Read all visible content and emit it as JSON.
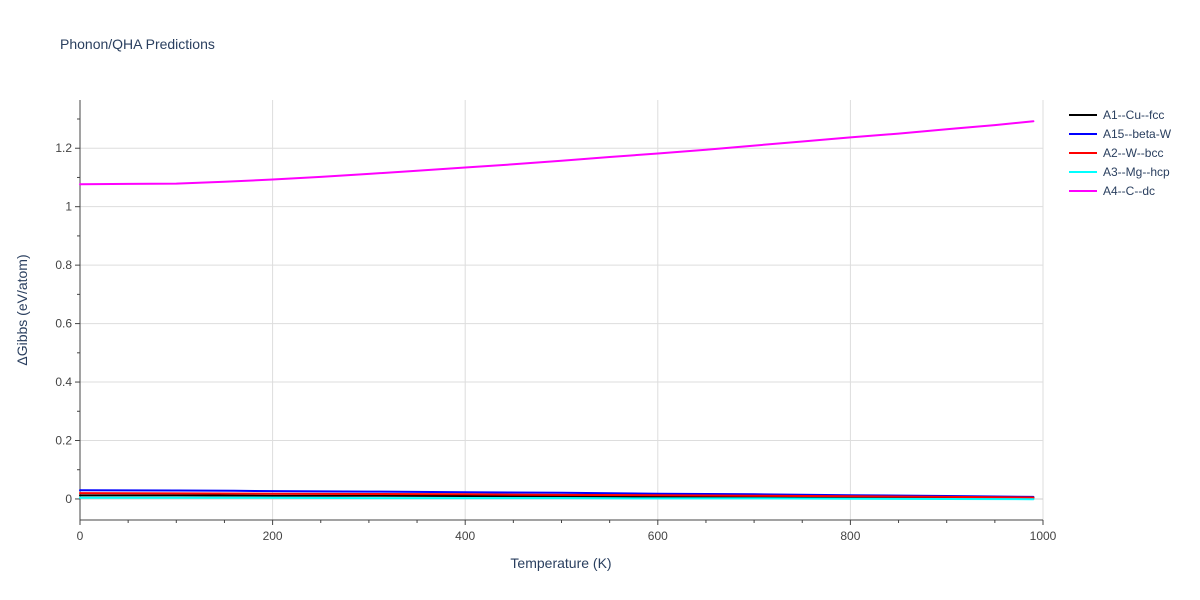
{
  "chart_data": {
    "type": "line",
    "title": "Phonon/QHA Predictions",
    "xlabel": "Temperature (K)",
    "ylabel": "ΔGibbs (eV/atom)",
    "xlim": [
      0,
      1000
    ],
    "ylim": [
      -0.072,
      1.365
    ],
    "xticks": [
      0,
      200,
      400,
      600,
      800,
      1000
    ],
    "xtick_labels": [
      "0",
      "200",
      "400",
      "600",
      "800",
      "1000"
    ],
    "yticks": [
      0,
      0.2,
      0.4,
      0.6,
      0.8,
      1,
      1.2
    ],
    "ytick_labels": [
      "0",
      "0.2",
      "0.4",
      "0.6",
      "0.8",
      "1",
      "1.2"
    ],
    "grid": true,
    "legend_position": "top-right outside",
    "series": [
      {
        "name": "A1--Cu--fcc",
        "color": "#000000",
        "x": [
          0,
          100,
          200,
          300,
          400,
          500,
          600,
          700,
          800,
          900,
          990
        ],
        "y": [
          0.012,
          0.012,
          0.011,
          0.011,
          0.01,
          0.009,
          0.008,
          0.007,
          0.006,
          0.005,
          0.004
        ]
      },
      {
        "name": "A15--beta-W",
        "color": "#0000ff",
        "x": [
          0,
          100,
          160,
          200,
          300,
          400,
          500,
          600,
          700,
          800,
          900,
          990
        ],
        "y": [
          0.03,
          0.029,
          0.028,
          0.027,
          0.025,
          0.023,
          0.021,
          0.018,
          0.016,
          0.013,
          0.01,
          0.007
        ]
      },
      {
        "name": "A2--W--bcc",
        "color": "#ff0000",
        "x": [
          0,
          100,
          200,
          300,
          400,
          500,
          600,
          700,
          800,
          900,
          990
        ],
        "y": [
          0.02,
          0.019,
          0.018,
          0.017,
          0.016,
          0.014,
          0.013,
          0.011,
          0.009,
          0.007,
          0.005
        ]
      },
      {
        "name": "A3--Mg--hcp",
        "color": "#00ffff",
        "x": [
          0,
          100,
          200,
          300,
          400,
          500,
          600,
          700,
          800,
          900,
          990
        ],
        "y": [
          0.004,
          0.004,
          0.004,
          0.003,
          0.003,
          0.003,
          0.002,
          0.002,
          0.001,
          0.0,
          -0.001
        ]
      },
      {
        "name": "A4--C--dc",
        "color": "#ff00ff",
        "x": [
          0,
          50,
          100,
          150,
          200,
          250,
          300,
          350,
          400,
          450,
          500,
          550,
          600,
          650,
          700,
          750,
          800,
          850,
          900,
          950,
          990
        ],
        "y": [
          1.077,
          1.078,
          1.079,
          1.085,
          1.093,
          1.102,
          1.112,
          1.123,
          1.134,
          1.145,
          1.157,
          1.17,
          1.182,
          1.195,
          1.209,
          1.223,
          1.237,
          1.25,
          1.265,
          1.279,
          1.292
        ]
      }
    ]
  }
}
